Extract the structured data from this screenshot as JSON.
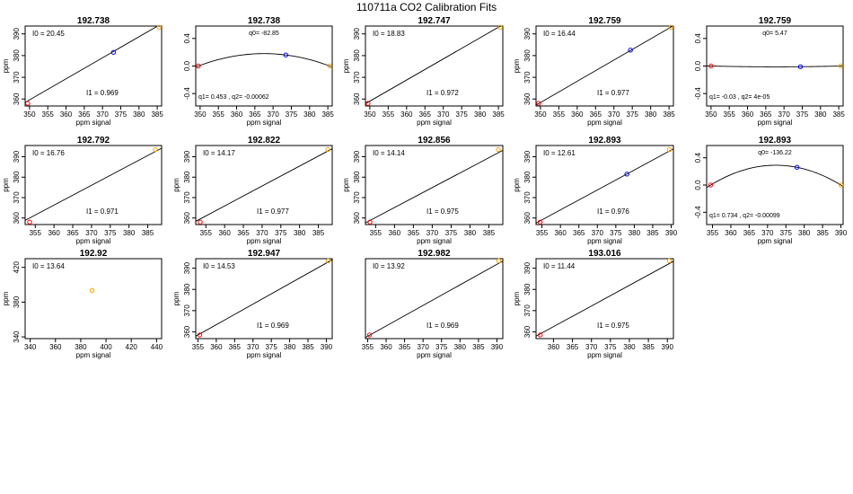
{
  "page": {
    "title": "110711a   CO2 Calibration Fits"
  },
  "colors": {
    "axis": "#000000",
    "fit_line": "#000000",
    "point_low": "#ff0000",
    "point_mid": "#0000ff",
    "point_high": "#ffa500"
  },
  "chart_data": [
    {
      "type": "scatter",
      "title": "192.738",
      "xlabel": "ppm signal",
      "ylabel": "ppm",
      "xlim": [
        348.8,
        386.2
      ],
      "ylim": [
        356.8,
        393.6
      ],
      "xticks": [
        350,
        355,
        360,
        365,
        370,
        375,
        380,
        385
      ],
      "yticks": [
        360,
        370,
        380,
        390
      ],
      "points": [
        {
          "x": 349.5,
          "y": 358.0,
          "color": "point_low"
        },
        {
          "x": 373.0,
          "y": 381.5,
          "color": "point_mid"
        },
        {
          "x": 385.5,
          "y": 393.0,
          "color": "point_high"
        }
      ],
      "fit": {
        "kind": "linear",
        "intercept": 20.45,
        "slope": 0.969
      },
      "annotations": [
        {
          "text": "I0 =  20.45",
          "pos": "top-left"
        },
        {
          "text": "I1 =  0.969",
          "pos": "bottom-mid"
        }
      ]
    },
    {
      "type": "scatter",
      "title": "192.738",
      "xlabel": "ppm signal",
      "ylabel": "",
      "xlim": [
        348.8,
        386.2
      ],
      "ylim": [
        -0.58,
        0.58
      ],
      "xticks": [
        350,
        355,
        360,
        365,
        370,
        375,
        380,
        385
      ],
      "yticks": [
        -0.4,
        0.0,
        0.4
      ],
      "points": [
        {
          "x": 349.5,
          "y": 0.0,
          "color": "point_low"
        },
        {
          "x": 373.5,
          "y": 0.16,
          "color": "point_mid"
        },
        {
          "x": 385.5,
          "y": 0.0,
          "color": "point_high"
        }
      ],
      "fit": {
        "kind": "quadratic",
        "q0": -82.85,
        "q1": 0.453,
        "q2": -0.00062
      },
      "annotations": [
        {
          "text": "q0= -82.85",
          "pos": "top-center"
        },
        {
          "text": "q1= 0.453 , q2= -0.00062",
          "pos": "bottom-left"
        }
      ]
    },
    {
      "type": "scatter",
      "title": "192.747",
      "xlabel": "ppm signal",
      "ylabel": "ppm",
      "xlim": [
        348.8,
        386.2
      ],
      "ylim": [
        356.8,
        393.6
      ],
      "xticks": [
        350,
        355,
        360,
        365,
        370,
        375,
        380,
        385
      ],
      "yticks": [
        360,
        370,
        380,
        390
      ],
      "points": [
        {
          "x": 349.5,
          "y": 358.0,
          "color": "point_low"
        },
        {
          "x": 385.5,
          "y": 393.0,
          "color": "point_high"
        }
      ],
      "fit": {
        "kind": "linear",
        "intercept": 18.83,
        "slope": 0.972
      },
      "annotations": [
        {
          "text": "I0 =  18.83",
          "pos": "top-left"
        },
        {
          "text": "I1 =  0.972",
          "pos": "bottom-mid"
        }
      ]
    },
    {
      "type": "scatter",
      "title": "192.759",
      "xlabel": "ppm signal",
      "ylabel": "ppm",
      "xlim": [
        348.8,
        386.2
      ],
      "ylim": [
        356.8,
        393.6
      ],
      "xticks": [
        350,
        355,
        360,
        365,
        370,
        375,
        380,
        385
      ],
      "yticks": [
        360,
        370,
        380,
        390
      ],
      "points": [
        {
          "x": 349.5,
          "y": 358.0,
          "color": "point_low"
        },
        {
          "x": 374.5,
          "y": 382.5,
          "color": "point_mid"
        },
        {
          "x": 385.5,
          "y": 393.0,
          "color": "point_high"
        }
      ],
      "fit": {
        "kind": "linear",
        "intercept": 16.44,
        "slope": 0.977
      },
      "annotations": [
        {
          "text": "I0 =  16.44",
          "pos": "top-left"
        },
        {
          "text": "I1 =  0.977",
          "pos": "bottom-mid"
        }
      ]
    },
    {
      "type": "scatter",
      "title": "192.759",
      "xlabel": "ppm signal",
      "ylabel": "",
      "xlim": [
        348.8,
        386.2
      ],
      "ylim": [
        -0.58,
        0.58
      ],
      "xticks": [
        350,
        355,
        360,
        365,
        370,
        375,
        380,
        385
      ],
      "yticks": [
        -0.4,
        0.0,
        0.4
      ],
      "points": [
        {
          "x": 350.0,
          "y": 0.0,
          "color": "point_low"
        },
        {
          "x": 374.5,
          "y": -0.01,
          "color": "point_mid"
        },
        {
          "x": 385.5,
          "y": 0.0,
          "color": "point_high"
        }
      ],
      "fit": {
        "kind": "quadratic",
        "q0": 5.47,
        "q1": -0.03,
        "q2": 4e-05
      },
      "annotations": [
        {
          "text": "q0= 5.47",
          "pos": "top-center"
        },
        {
          "text": "q1= -0.03 , q2= 4e-05",
          "pos": "bottom-left"
        }
      ]
    },
    {
      "type": "scatter",
      "title": "192.792",
      "xlabel": "ppm signal",
      "ylabel": "ppm",
      "xlim": [
        352.3,
        388.7
      ],
      "ylim": [
        356.8,
        395.5
      ],
      "xticks": [
        355,
        360,
        365,
        370,
        375,
        380,
        385
      ],
      "yticks": [
        360,
        370,
        380,
        390
      ],
      "points": [
        {
          "x": 353.5,
          "y": 358.0,
          "color": "point_low"
        },
        {
          "x": 387.0,
          "y": 393.5,
          "color": "point_high"
        }
      ],
      "fit": {
        "kind": "linear",
        "intercept": 16.76,
        "slope": 0.971
      },
      "annotations": [
        {
          "text": "I0 =  16.76",
          "pos": "top-left"
        },
        {
          "text": "I1 =  0.971",
          "pos": "bottom-mid"
        }
      ]
    },
    {
      "type": "scatter",
      "title": "192.822",
      "xlabel": "ppm signal",
      "ylabel": "ppm",
      "xlim": [
        352.3,
        388.7
      ],
      "ylim": [
        356.8,
        395.5
      ],
      "xticks": [
        355,
        360,
        365,
        370,
        375,
        380,
        385
      ],
      "yticks": [
        360,
        370,
        380,
        390
      ],
      "points": [
        {
          "x": 353.5,
          "y": 358.0,
          "color": "point_low"
        },
        {
          "x": 387.5,
          "y": 393.5,
          "color": "point_high"
        }
      ],
      "fit": {
        "kind": "linear",
        "intercept": 14.17,
        "slope": 0.977
      },
      "annotations": [
        {
          "text": "I0 =  14.17",
          "pos": "top-left"
        },
        {
          "text": "I1 =  0.977",
          "pos": "bottom-mid"
        }
      ]
    },
    {
      "type": "scatter",
      "title": "192.856",
      "xlabel": "ppm signal",
      "ylabel": "ppm",
      "xlim": [
        352.3,
        388.7
      ],
      "ylim": [
        356.8,
        395.5
      ],
      "xticks": [
        355,
        360,
        365,
        370,
        375,
        380,
        385
      ],
      "yticks": [
        360,
        370,
        380,
        390
      ],
      "points": [
        {
          "x": 353.5,
          "y": 358.0,
          "color": "point_low"
        },
        {
          "x": 387.5,
          "y": 393.5,
          "color": "point_high"
        }
      ],
      "fit": {
        "kind": "linear",
        "intercept": 14.14,
        "slope": 0.975
      },
      "annotations": [
        {
          "text": "I0 =  14.14",
          "pos": "top-left"
        },
        {
          "text": "I1 =  0.975",
          "pos": "bottom-mid"
        }
      ]
    },
    {
      "type": "scatter",
      "title": "192.893",
      "xlabel": "ppm signal",
      "ylabel": "ppm",
      "xlim": [
        353.4,
        390.6
      ],
      "ylim": [
        356.8,
        395.5
      ],
      "xticks": [
        355,
        360,
        365,
        370,
        375,
        380,
        385,
        390
      ],
      "yticks": [
        360,
        370,
        380,
        390
      ],
      "points": [
        {
          "x": 354.5,
          "y": 358.0,
          "color": "point_low"
        },
        {
          "x": 378.0,
          "y": 381.5,
          "color": "point_mid"
        },
        {
          "x": 389.5,
          "y": 393.5,
          "color": "point_high"
        }
      ],
      "fit": {
        "kind": "linear",
        "intercept": 12.61,
        "slope": 0.976
      },
      "annotations": [
        {
          "text": "I0 =  12.61",
          "pos": "top-left"
        },
        {
          "text": "I1 =  0.976",
          "pos": "bottom-mid"
        }
      ]
    },
    {
      "type": "scatter",
      "title": "192.893",
      "xlabel": "ppm signal",
      "ylabel": "",
      "xlim": [
        353.4,
        390.6
      ],
      "ylim": [
        -0.58,
        0.58
      ],
      "xticks": [
        355,
        360,
        365,
        370,
        375,
        380,
        385,
        390
      ],
      "yticks": [
        -0.4,
        0.0,
        0.4
      ],
      "points": [
        {
          "x": 354.5,
          "y": 0.0,
          "color": "point_low"
        },
        {
          "x": 378.0,
          "y": 0.26,
          "color": "point_mid"
        },
        {
          "x": 390.0,
          "y": 0.0,
          "color": "point_high"
        }
      ],
      "fit": {
        "kind": "quadratic",
        "q0": -136.22,
        "q1": 0.734,
        "q2": -0.00099
      },
      "annotations": [
        {
          "text": "q0= -136.22",
          "pos": "top-center"
        },
        {
          "text": "q1= 0.734 , q2= -0.00099",
          "pos": "bottom-left"
        }
      ]
    },
    {
      "type": "scatter",
      "title": "192.92",
      "xlabel": "ppm signal",
      "ylabel": "ppm",
      "xlim": [
        336,
        444
      ],
      "ylim": [
        338,
        430
      ],
      "xticks": [
        340,
        360,
        380,
        400,
        420,
        440
      ],
      "yticks": [
        340,
        380,
        420
      ],
      "points": [
        {
          "x": 389.0,
          "y": 393.5,
          "color": "point_high"
        }
      ],
      "fit": null,
      "annotations": [
        {
          "text": "I0 =  13.64",
          "pos": "top-left"
        }
      ]
    },
    {
      "type": "scatter",
      "title": "192.947",
      "xlabel": "ppm signal",
      "ylabel": "ppm",
      "xlim": [
        354.4,
        391.6
      ],
      "ylim": [
        356.8,
        394.5
      ],
      "xticks": [
        355,
        360,
        365,
        370,
        375,
        380,
        385,
        390
      ],
      "yticks": [
        360,
        370,
        380,
        390
      ],
      "points": [
        {
          "x": 355.5,
          "y": 358.5,
          "color": "point_low"
        },
        {
          "x": 390.5,
          "y": 393.5,
          "color": "point_high"
        }
      ],
      "fit": {
        "kind": "linear",
        "intercept": 14.53,
        "slope": 0.969
      },
      "annotations": [
        {
          "text": "I0 =  14.53",
          "pos": "top-left"
        },
        {
          "text": "I1 =  0.969",
          "pos": "bottom-mid"
        }
      ]
    },
    {
      "type": "scatter",
      "title": "192.982",
      "xlabel": "ppm signal",
      "ylabel": "",
      "xlim": [
        354.4,
        391.6
      ],
      "ylim": [
        356.8,
        394.5
      ],
      "xticks": [
        355,
        360,
        365,
        370,
        375,
        380,
        385,
        390
      ],
      "yticks": [],
      "points": [
        {
          "x": 355.5,
          "y": 358.5,
          "color": "point_low"
        },
        {
          "x": 390.5,
          "y": 393.5,
          "color": "point_high"
        }
      ],
      "fit": {
        "kind": "linear",
        "intercept": 13.92,
        "slope": 0.969
      },
      "annotations": [
        {
          "text": "I0 =  13.92",
          "pos": "top-left"
        },
        {
          "text": "I1 =  0.969",
          "pos": "bottom-mid"
        }
      ]
    },
    {
      "type": "scatter",
      "title": "193.016",
      "xlabel": "ppm signal",
      "ylabel": "ppm",
      "xlim": [
        355.4,
        391.6
      ],
      "ylim": [
        356.8,
        394.5
      ],
      "xticks": [
        360,
        365,
        370,
        375,
        380,
        385,
        390
      ],
      "yticks": [
        360,
        370,
        380,
        390
      ],
      "points": [
        {
          "x": 356.5,
          "y": 358.5,
          "color": "point_low"
        },
        {
          "x": 390.5,
          "y": 393.5,
          "color": "point_high"
        }
      ],
      "fit": {
        "kind": "linear",
        "intercept": 11.44,
        "slope": 0.975
      },
      "annotations": [
        {
          "text": "I0 =  11.44",
          "pos": "top-left"
        },
        {
          "text": "I1 =  0.975",
          "pos": "bottom-mid"
        }
      ]
    }
  ]
}
